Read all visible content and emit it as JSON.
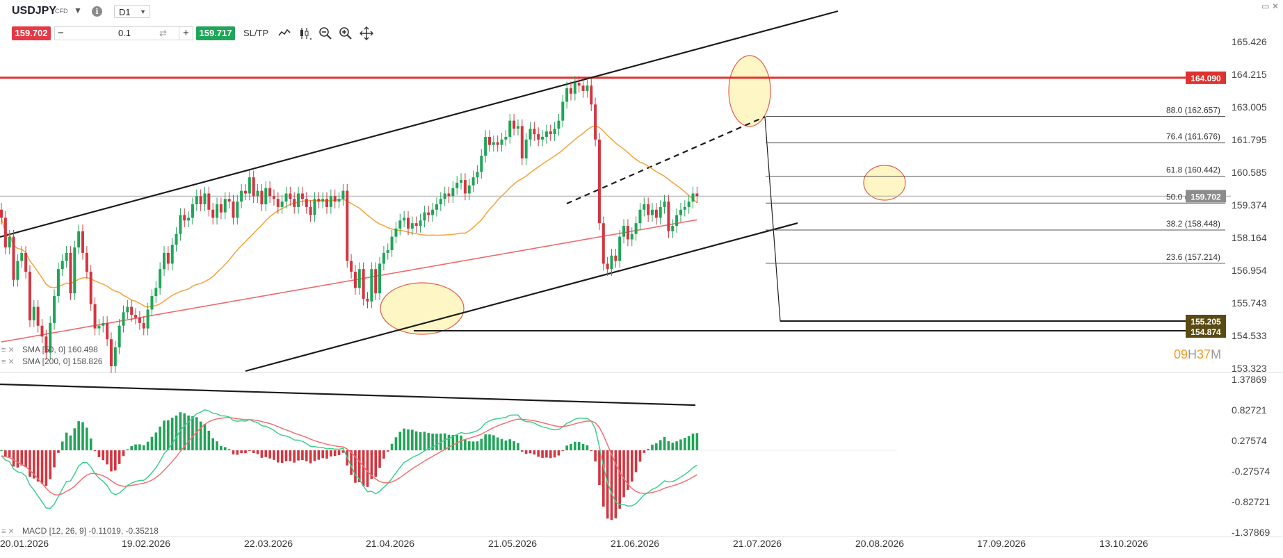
{
  "toolbar": {
    "symbol": "USDJPY",
    "instrument_type": "CFD",
    "timeframe": "D1",
    "sell_price": "159.702",
    "buy_price": "159.717",
    "quantity": "0.1",
    "sl_tp_label": "SL/TP",
    "icons": [
      "line-chart-icon",
      "candlestick-icon",
      "zoom-out-icon",
      "zoom-in-icon",
      "move-icon"
    ],
    "window_icons": [
      "minimize-icon",
      "close-icon"
    ]
  },
  "colors": {
    "up": "#1fa557",
    "down": "#d3353f",
    "sma50": "#f5a742",
    "sma200": "#ef6a6a",
    "resistance": "#e0322f",
    "highlight_fill": "#fdf3b0",
    "highlight_stroke": "#e55b4b"
  },
  "chart_data": [
    {
      "type": "candlestick",
      "title": "USDJPY",
      "timeframe": "D1",
      "x_ticks": [
        "20.01.2026",
        "19.02.2026",
        "22.03.2026",
        "21.04.2026",
        "21.05.2026",
        "21.06.2026",
        "21.07.2026",
        "20.08.2026",
        "17.09.2026",
        "13.10.2026"
      ],
      "y_ticks": [
        "165.426",
        "164.215",
        "163.005",
        "161.795",
        "160.585",
        "159.374",
        "158.164",
        "156.954",
        "155.743",
        "154.533",
        "153.323"
      ],
      "ylim": [
        153.323,
        165.426
      ],
      "last_price": "159.702",
      "horizontal_lines": [
        {
          "label": "164.090",
          "value": 164.09,
          "color": "#e0322f"
        },
        {
          "label": "155.205",
          "value": 155.205
        },
        {
          "label": "154.874",
          "value": 154.874
        }
      ],
      "fibonacci": [
        {
          "label": "88.0 (162.657)",
          "ratio": 88.0,
          "value": 162.657
        },
        {
          "label": "76.4 (161.676)",
          "ratio": 76.4,
          "value": 161.676
        },
        {
          "label": "61.8 (160.442)",
          "ratio": 61.8,
          "value": 160.442
        },
        {
          "label": "50.0 (159.445)",
          "ratio": 50.0,
          "value": 159.445
        },
        {
          "label": "38.2 (158.448)",
          "ratio": 38.2,
          "value": 158.448
        },
        {
          "label": "23.6 (157.214)",
          "ratio": 23.6,
          "value": 157.214
        }
      ],
      "indicators": [
        {
          "label": "SMA [50, 0] 160.498",
          "name": "SMA 50",
          "value": 160.498
        },
        {
          "label": "SMA [200, 0] 158.826",
          "name": "SMA 200",
          "value": 158.826
        }
      ],
      "countdown": {
        "hours": "09",
        "hours_unit": "H",
        "minutes": "37",
        "minutes_unit": "M"
      },
      "closes": [
        158.9,
        157.8,
        158.2,
        156.6,
        157.3,
        157.6,
        156.9,
        155.1,
        155.6,
        154.9,
        154.5,
        153.9,
        155.0,
        156.0,
        157.0,
        157.3,
        157.6,
        156.1,
        157.8,
        158.4,
        157.6,
        156.9,
        155.7,
        154.8,
        154.9,
        155.0,
        154.4,
        153.4,
        154.1,
        154.9,
        155.4,
        155.6,
        155.3,
        155.2,
        155.0,
        154.8,
        155.5,
        156.0,
        156.3,
        157.0,
        157.6,
        157.2,
        157.9,
        158.3,
        159.0,
        158.8,
        158.9,
        159.4,
        159.7,
        159.4,
        159.8,
        159.2,
        158.9,
        159.4,
        159.1,
        159.6,
        159.5,
        158.9,
        159.5,
        159.9,
        159.8,
        160.4,
        159.7,
        159.9,
        159.4,
        160.0,
        159.7,
        159.6,
        159.3,
        159.5,
        159.8,
        159.6,
        159.3,
        159.8,
        159.6,
        159.3,
        159.0,
        159.6,
        159.5,
        159.6,
        159.3,
        159.7,
        159.5,
        159.6,
        159.9,
        157.3,
        156.9,
        156.3,
        157.0,
        155.9,
        155.8,
        157.0,
        156.1,
        157.2,
        157.6,
        157.7,
        158.2,
        158.5,
        158.8,
        158.9,
        158.5,
        158.7,
        158.6,
        158.8,
        159.1,
        159.0,
        159.2,
        159.4,
        159.6,
        159.8,
        159.7,
        160.0,
        160.2,
        160.3,
        159.8,
        160.1,
        160.4,
        160.6,
        161.2,
        161.9,
        161.6,
        161.7,
        161.6,
        161.8,
        161.9,
        162.5,
        162.2,
        162.3,
        161.1,
        161.8,
        162.2,
        162.0,
        161.8,
        161.9,
        162.1,
        162.0,
        162.2,
        162.5,
        163.2,
        163.7,
        163.5,
        163.9,
        163.8,
        163.6,
        163.8,
        163.1,
        161.8,
        158.7,
        157.2,
        157.0,
        157.5,
        157.3,
        158.2,
        158.6,
        158.1,
        158.3,
        158.7,
        159.2,
        159.4,
        159.0,
        159.2,
        158.9,
        159.3,
        159.5,
        158.4,
        158.6,
        159.0,
        159.2,
        159.3,
        159.5,
        159.8,
        159.7
      ]
    },
    {
      "type": "macd",
      "title": "MACD [12, 26, 9] -0.11019, -0.35218",
      "params": [
        12,
        26,
        9
      ],
      "macd": -0.11019,
      "signal": -0.35218,
      "y_ticks": [
        "1.37869",
        "0.82721",
        "0.27574",
        "-0.27574",
        "-0.82721",
        "-1.37869"
      ],
      "ylim": [
        -1.37869,
        1.37869
      ]
    }
  ]
}
